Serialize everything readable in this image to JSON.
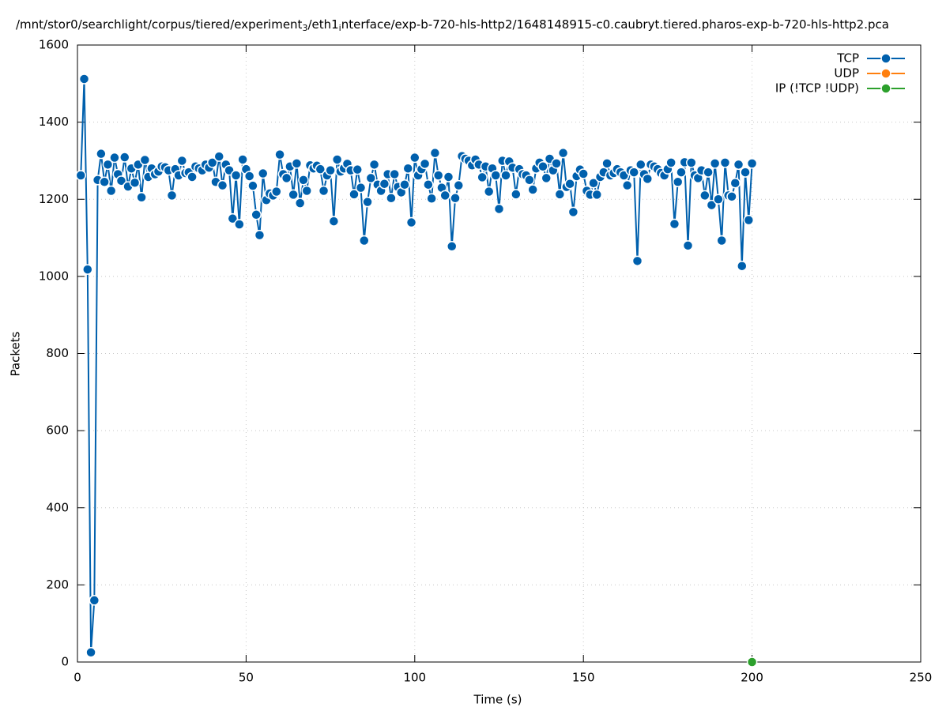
{
  "chart_data": {
    "type": "line",
    "title_parts": [
      "/mnt/stor0/searchlight/corpus/tiered/experiment",
      "3",
      "/eth1",
      "i",
      "nterface/exp-b-720-hls-http2/1648148915-c0.caubryt.tiered.pharos-exp-b-720-hls-http2.pca"
    ],
    "x_label": "Time (s)",
    "y_label": "Packets",
    "xlim": [
      0,
      250
    ],
    "xticks": [
      0,
      50,
      100,
      150,
      200,
      250
    ],
    "ylim": [
      0,
      1600
    ],
    "yticks": [
      0,
      200,
      400,
      600,
      800,
      1000,
      1200,
      1400,
      1600
    ],
    "grid": true,
    "legend": "top-right",
    "series": [
      {
        "name": "TCP",
        "color": "#0060ad",
        "x": [
          1,
          2,
          3,
          4,
          5,
          6,
          7,
          8,
          9,
          10,
          11,
          12,
          13,
          14,
          15,
          16,
          17,
          18,
          19,
          20,
          21,
          22,
          23,
          24,
          25,
          26,
          27,
          28,
          29,
          30,
          31,
          32,
          33,
          34,
          35,
          36,
          37,
          38,
          39,
          40,
          41,
          42,
          43,
          44,
          45,
          46,
          47,
          48,
          49,
          50,
          51,
          52,
          53,
          54,
          55,
          56,
          57,
          58,
          59,
          60,
          61,
          62,
          63,
          64,
          65,
          66,
          67,
          68,
          69,
          70,
          71,
          72,
          73,
          74,
          75,
          76,
          77,
          78,
          79,
          80,
          81,
          82,
          83,
          84,
          85,
          86,
          87,
          88,
          89,
          90,
          91,
          92,
          93,
          94,
          95,
          96,
          97,
          98,
          99,
          100,
          101,
          102,
          103,
          104,
          105,
          106,
          107,
          108,
          109,
          110,
          111,
          112,
          113,
          114,
          115,
          116,
          117,
          118,
          119,
          120,
          121,
          122,
          123,
          124,
          125,
          126,
          127,
          128,
          129,
          130,
          131,
          132,
          133,
          134,
          135,
          136,
          137,
          138,
          139,
          140,
          141,
          142,
          143,
          144,
          145,
          146,
          147,
          148,
          149,
          150,
          151,
          152,
          153,
          154,
          155,
          156,
          157,
          158,
          159,
          160,
          161,
          162,
          163,
          164,
          165,
          166,
          167,
          168,
          169,
          170,
          171,
          172,
          173,
          174,
          175,
          176,
          177,
          178,
          179,
          180,
          181,
          182,
          183,
          184,
          185,
          186,
          187,
          188,
          189,
          190,
          191,
          192,
          193,
          194,
          195,
          196,
          197,
          198,
          199,
          200
        ],
        "values": [
          1262,
          1512,
          1018,
          25,
          160,
          1250,
          1318,
          1245,
          1290,
          1222,
          1308,
          1265,
          1248,
          1309,
          1233,
          1280,
          1243,
          1290,
          1205,
          1302,
          1258,
          1280,
          1265,
          1272,
          1285,
          1283,
          1275,
          1210,
          1278,
          1262,
          1300,
          1268,
          1270,
          1258,
          1285,
          1280,
          1275,
          1290,
          1282,
          1295,
          1245,
          1311,
          1236,
          1290,
          1275,
          1150,
          1262,
          1135,
          1303,
          1278,
          1260,
          1235,
          1160,
          1107,
          1267,
          1198,
          1215,
          1210,
          1220,
          1316,
          1265,
          1255,
          1285,
          1212,
          1293,
          1190,
          1250,
          1222,
          1288,
          1280,
          1287,
          1278,
          1222,
          1262,
          1275,
          1143,
          1303,
          1272,
          1280,
          1292,
          1275,
          1213,
          1277,
          1230,
          1093,
          1193,
          1255,
          1290,
          1238,
          1222,
          1240,
          1265,
          1203,
          1265,
          1232,
          1218,
          1238,
          1280,
          1140,
          1308,
          1262,
          1278,
          1292,
          1238,
          1202,
          1320,
          1262,
          1230,
          1210,
          1258,
          1078,
          1203,
          1236,
          1312,
          1305,
          1300,
          1288,
          1303,
          1290,
          1257,
          1285,
          1220,
          1280,
          1262,
          1175,
          1300,
          1262,
          1298,
          1282,
          1213,
          1278,
          1265,
          1262,
          1250,
          1225,
          1280,
          1295,
          1285,
          1255,
          1305,
          1275,
          1293,
          1213,
          1320,
          1232,
          1240,
          1167,
          1260,
          1277,
          1266,
          1222,
          1212,
          1242,
          1212,
          1258,
          1270,
          1293,
          1262,
          1268,
          1278,
          1270,
          1262,
          1236,
          1275,
          1270,
          1040,
          1290,
          1265,
          1253,
          1290,
          1285,
          1278,
          1268,
          1262,
          1278,
          1295,
          1136,
          1245,
          1270,
          1296,
          1080,
          1295,
          1262,
          1255,
          1275,
          1210,
          1270,
          1185,
          1293,
          1200,
          1093,
          1295,
          1210,
          1207,
          1242,
          1290,
          1027,
          1270,
          1146,
          1293
        ]
      },
      {
        "name": "UDP",
        "color": "#ff7f0e",
        "x": [],
        "values": []
      },
      {
        "name": "IP (!TCP  !UDP)",
        "color": "#2ca02c",
        "x": [
          200
        ],
        "values": [
          0
        ]
      }
    ]
  }
}
